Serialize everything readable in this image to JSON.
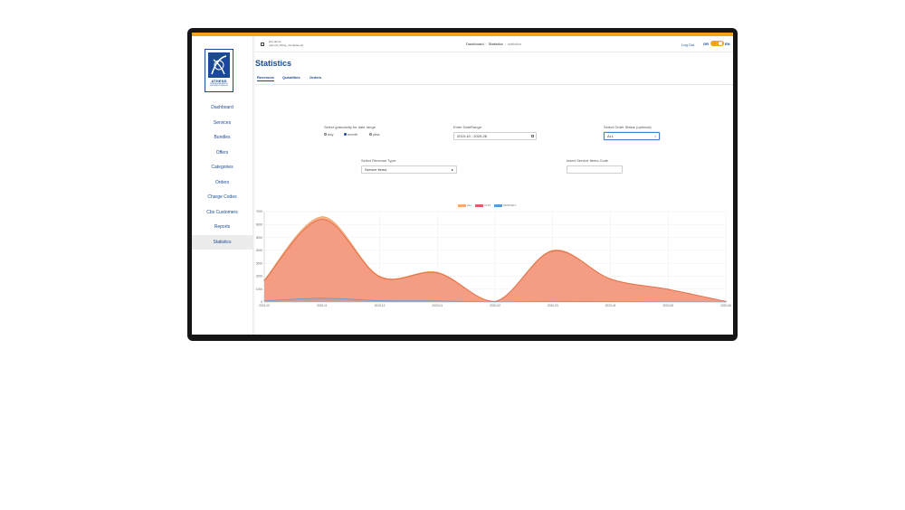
{
  "user": {
    "name": "bird admin",
    "email": "(daymd_billing_user@aia.gr)"
  },
  "breadcrumb": {
    "items": [
      "Dashboard",
      "Statistics"
    ],
    "current": "statistics"
  },
  "header": {
    "logout_label": "Log Out",
    "lang_left": "GR",
    "lang_right": "EN"
  },
  "logo": {
    "text": "ATHENS",
    "subtitle": "INTERNATIONAL AIRPORT ELEFTHERIOS VENIZELOS"
  },
  "sidebar": {
    "items": [
      {
        "label": "Dashboard"
      },
      {
        "label": "Services"
      },
      {
        "label": "Bundles"
      },
      {
        "label": "Offers"
      },
      {
        "label": "Categories"
      },
      {
        "label": "Orders"
      },
      {
        "label": "Charge Codes"
      },
      {
        "label": "Cbs Customers"
      },
      {
        "label": "Reports"
      },
      {
        "label": "Statistics"
      }
    ],
    "active_index": 9
  },
  "page": {
    "title": "Statistics"
  },
  "tabs": [
    {
      "label": "Revenues"
    },
    {
      "label": "Quantities"
    },
    {
      "label": "Orders"
    }
  ],
  "filters": {
    "granularity_label": "Select granularity for date range",
    "granularity_options": [
      "day",
      "month",
      "year"
    ],
    "granularity_selected": "month",
    "date_range_label": "Enter DateRange:",
    "date_range_value": "2019-10 - 2020-06",
    "order_status_label": "Select Order Status (optional)",
    "order_status_value": "ALL",
    "revenue_type_label": "Select Revenue Type:",
    "revenue_type_value": "Service Items",
    "service_code_label": "Insert Service Items Code",
    "service_code_value": ""
  },
  "colors": {
    "accent": "#f0a41a",
    "brand": "#1a4a93",
    "all": "#f7a877",
    "flat": "#e8596c",
    "monthly": "#5b9bd5"
  },
  "chart_data": {
    "type": "area",
    "title": "",
    "xlabel": "",
    "ylabel": "",
    "x": [
      "2019-10",
      "2019-11",
      "2019-12",
      "2020-01",
      "2020-02",
      "2020-03",
      "2020-04",
      "2020-05",
      "2020-06"
    ],
    "ylim": [
      0,
      7000
    ],
    "yticks": [
      0,
      1000,
      2000,
      3000,
      4000,
      5000,
      6000,
      7000
    ],
    "ytick_labels": [
      "0",
      "1000",
      "2000",
      "3000",
      "4000",
      "5000",
      "6000",
      "7000"
    ],
    "grid": true,
    "legend_position": "top-center",
    "series": [
      {
        "name": "ALL",
        "values": [
          1700,
          6600,
          2000,
          2300,
          50,
          4000,
          1800,
          1000,
          50
        ]
      },
      {
        "name": "FLAT",
        "values": [
          1650,
          6400,
          1950,
          2250,
          40,
          3950,
          1780,
          980,
          40
        ]
      },
      {
        "name": "MONTHLY",
        "values": [
          80,
          300,
          100,
          80,
          20,
          50,
          30,
          20,
          10
        ]
      }
    ]
  }
}
